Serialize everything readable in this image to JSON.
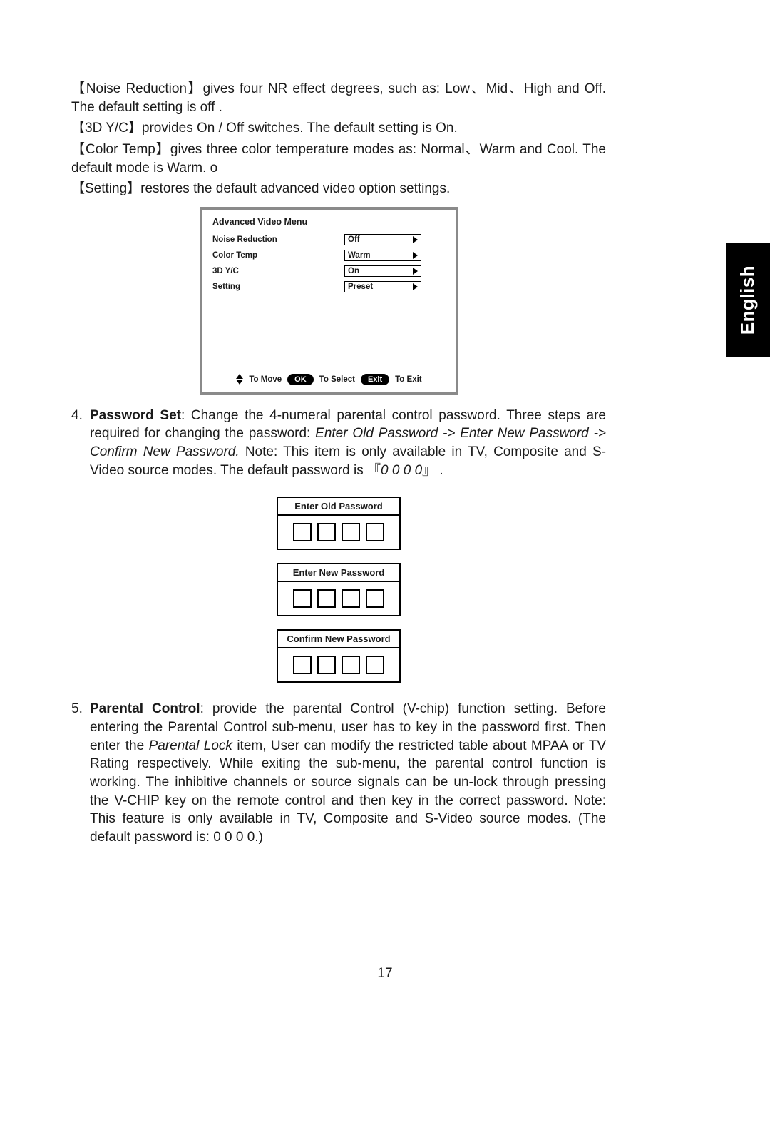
{
  "intro": {
    "noise_reduction": "【Noise Reduction】gives four NR effect degrees, such as: Low、Mid、High and Off. The default setting is off .",
    "yc3d": "【3D Y/C】provides On / Off switches. The default setting is On.",
    "color_temp": "【Color Temp】gives three color temperature modes as: Normal、Warm and Cool. The default mode is Warm. o",
    "setting": "【Setting】restores the default advanced video option settings."
  },
  "osd": {
    "title": "Advanced Video Menu",
    "rows": [
      {
        "label": "Noise Reduction",
        "value": "Off"
      },
      {
        "label": "Color Temp",
        "value": "Warm"
      },
      {
        "label": "3D Y/C",
        "value": "On"
      },
      {
        "label": "Setting",
        "value": "Preset"
      }
    ],
    "footer": {
      "to_move": "To Move",
      "ok_btn": "OK",
      "to_select": "To Select",
      "exit_btn": "Exit",
      "to_exit": "To Exit"
    }
  },
  "item4": {
    "n": "4.",
    "lead_bold": "Password Set",
    "body_a": ": Change the 4-numeral parental control password. Three steps are required for changing the password: ",
    "seq_italic": "Enter Old Password -> Enter New Password -> Confirm New Password.",
    "body_b": " Note: This item is only available in TV, Composite and S-Video source modes. The default password is 『",
    "pw_italic": "0 0 0 0",
    "body_c": "』 ."
  },
  "pw_titles": {
    "old": "Enter Old Password",
    "new": "Enter New Password",
    "confirm": "Confirm New Password"
  },
  "item5": {
    "n": "5.",
    "lead_bold": "Parental Control",
    "body_a": ": provide the parental Control (V-chip) function setting. Before entering the Parental Control sub-menu, user has to key in the password first. Then enter the ",
    "pl_italic": "Parental Lock",
    "body_b": " item, User can modify the restricted table about MPAA or TV Rating respectively. While exiting the sub-menu, the parental control function is working. The inhibitive channels or source signals can be un-lock through pressing the V-CHIP key on the remote control and then key in the correct password. Note: This feature is only available in TV, Composite and S-Video source modes. (The default password is: 0 0 0 0.)"
  },
  "side_tab": "English",
  "page_number": "17",
  "colors": {
    "text": "#1a1a1a",
    "border_gray": "#8a8a8a",
    "black": "#000000",
    "white": "#ffffff"
  }
}
